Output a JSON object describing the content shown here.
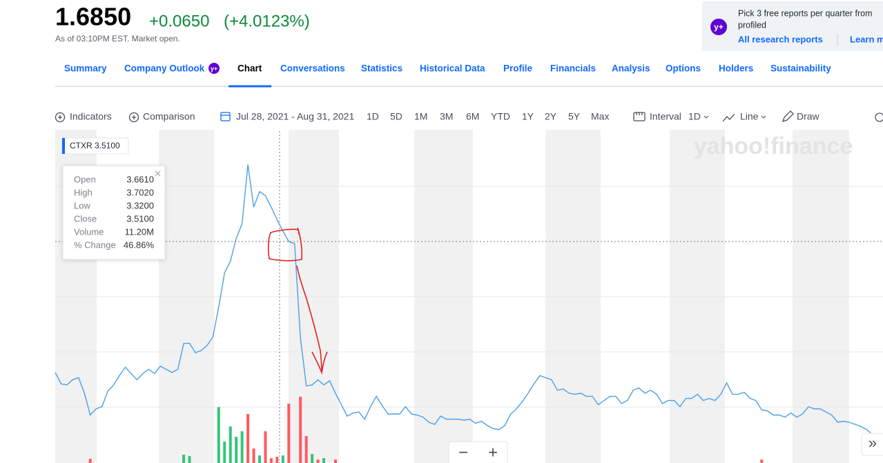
{
  "quote": {
    "price": "1.6850",
    "change": "+0.0650",
    "change_percent": "(+4.0123%)",
    "as_of": "As of 03:10PM EST. Market open."
  },
  "promo": {
    "badge": "y+",
    "line1": "Pick 3 free reports per quarter from",
    "line2": "profiled",
    "link": "All research reports",
    "learn": "Learn more"
  },
  "tabs": [
    "Summary",
    "Company Outlook",
    "Chart",
    "Conversations",
    "Statistics",
    "Historical Data",
    "Profile",
    "Financials",
    "Analysis",
    "Options",
    "Holders",
    "Sustainability"
  ],
  "tab_badge": "y+",
  "toolbar": {
    "indicators": "Indicators",
    "comparison": "Comparison",
    "date_range": "Jul 28, 2021 - Aug 31, 2021",
    "ranges": [
      "1D",
      "5D",
      "1M",
      "3M",
      "6M",
      "YTD",
      "1Y",
      "2Y",
      "5Y",
      "Max"
    ],
    "interval_label": "Interval",
    "interval": "1D",
    "line": "Line",
    "draw": "Draw"
  },
  "chart": {
    "type": "line",
    "ticker_label": "CTXR 3.5100",
    "watermark": "yahoo!finance",
    "color": "#4a9fe6",
    "values": [
      2.25,
      2.14,
      2.13,
      2.18,
      2.2,
      2.05,
      1.84,
      1.9,
      1.92,
      2.07,
      2.13,
      2.22,
      2.3,
      2.24,
      2.18,
      2.24,
      2.28,
      2.24,
      2.31,
      2.28,
      2.25,
      2.28,
      2.53,
      2.53,
      2.44,
      2.46,
      2.51,
      2.59,
      2.88,
      3.21,
      3.32,
      3.54,
      3.68,
      4.25,
      3.84,
      3.99,
      3.95,
      3.84,
      3.72,
      3.61,
      3.51,
      3.49,
      2.58,
      2.12,
      2.13,
      2.18,
      2.13,
      2.17,
      2.05,
      1.94,
      1.83,
      1.86,
      1.87,
      1.8,
      1.92,
      2.02,
      1.93,
      1.85,
      1.85,
      1.85,
      1.92,
      1.85,
      1.84,
      1.82,
      1.77,
      1.75,
      1.83,
      1.8,
      1.8,
      1.8,
      1.79,
      1.8,
      1.76,
      1.78,
      1.74,
      1.71,
      1.7,
      1.74,
      1.85,
      1.9,
      1.97,
      2.05,
      2.14,
      2.22,
      2.2,
      2.18,
      2.08,
      2.09,
      2.05,
      2.04,
      2.05,
      2.02,
      2.02,
      1.94,
      1.98,
      2.02,
      2.02,
      1.95,
      1.98,
      2.08,
      2.1,
      2.05,
      2.08,
      2.04,
      1.95,
      1.98,
      1.98,
      1.92,
      2.0,
      2.0,
      2.04,
      1.98,
      2.0,
      1.98,
      2.04,
      2.15,
      2.04,
      2.04,
      2.06,
      2.0,
      1.98,
      1.89,
      1.88,
      1.84,
      1.84,
      1.82,
      1.86,
      1.82,
      1.85,
      1.92,
      1.9,
      1.9,
      1.87,
      1.84,
      1.77,
      1.78,
      1.77,
      1.75,
      1.73,
      1.7,
      1.65
    ],
    "volume": [
      {
        "day": 6,
        "value": 7.5,
        "color": "#ff5a5f"
      },
      {
        "day": 22,
        "value": 14.9,
        "color": "#35c47a"
      },
      {
        "day": 23,
        "value": 12.4,
        "color": "#35c47a"
      },
      {
        "day": 28,
        "value": 100.8,
        "color": "#35c47a"
      },
      {
        "day": 29,
        "value": 38.6,
        "color": "#35c47a"
      },
      {
        "day": 30,
        "value": 65.9,
        "color": "#35c47a"
      },
      {
        "day": 31,
        "value": 47.3,
        "color": "#35c47a"
      },
      {
        "day": 32,
        "value": 57.2,
        "color": "#35c47a"
      },
      {
        "day": 33,
        "value": 88.3,
        "color": "#ff5a5f"
      },
      {
        "day": 34,
        "value": 26.1,
        "color": "#ff5a5f"
      },
      {
        "day": 35,
        "value": 13.7,
        "color": "#35c47a"
      },
      {
        "day": 36,
        "value": 57.2,
        "color": "#ff5a5f"
      },
      {
        "day": 37,
        "value": 8.7,
        "color": "#ff5a5f"
      },
      {
        "day": 38,
        "value": 11.2,
        "color": "#ff5a5f"
      },
      {
        "day": 39,
        "value": 13.7,
        "color": "#35c47a"
      },
      {
        "day": 40,
        "value": 107.0,
        "color": "#ff5a5f"
      },
      {
        "day": 42,
        "value": 119.4,
        "color": "#ff5a5f"
      },
      {
        "day": 43,
        "value": 48.5,
        "color": "#ff5a5f"
      },
      {
        "day": 44,
        "value": 16.2,
        "color": "#35c47a"
      },
      {
        "day": 45,
        "value": 6.2,
        "color": "#ff5a5f"
      },
      {
        "day": 46,
        "value": 8.7,
        "color": "#35c47a"
      },
      {
        "day": 48,
        "value": 6.2,
        "color": "#ff5a5f"
      },
      {
        "day": 121,
        "value": 6.2,
        "color": "#ff5a5f"
      }
    ],
    "tooltip": [
      [
        "Open",
        "3.6610"
      ],
      [
        "High",
        "3.7020"
      ],
      [
        "Low",
        "3.3200"
      ],
      [
        "Close",
        "3.5100"
      ],
      [
        "Volume",
        "11.20M"
      ],
      [
        "% Change",
        "46.86%"
      ]
    ]
  },
  "controls": {
    "zoom_out": "−",
    "zoom_in": "+",
    "expand": "»"
  }
}
